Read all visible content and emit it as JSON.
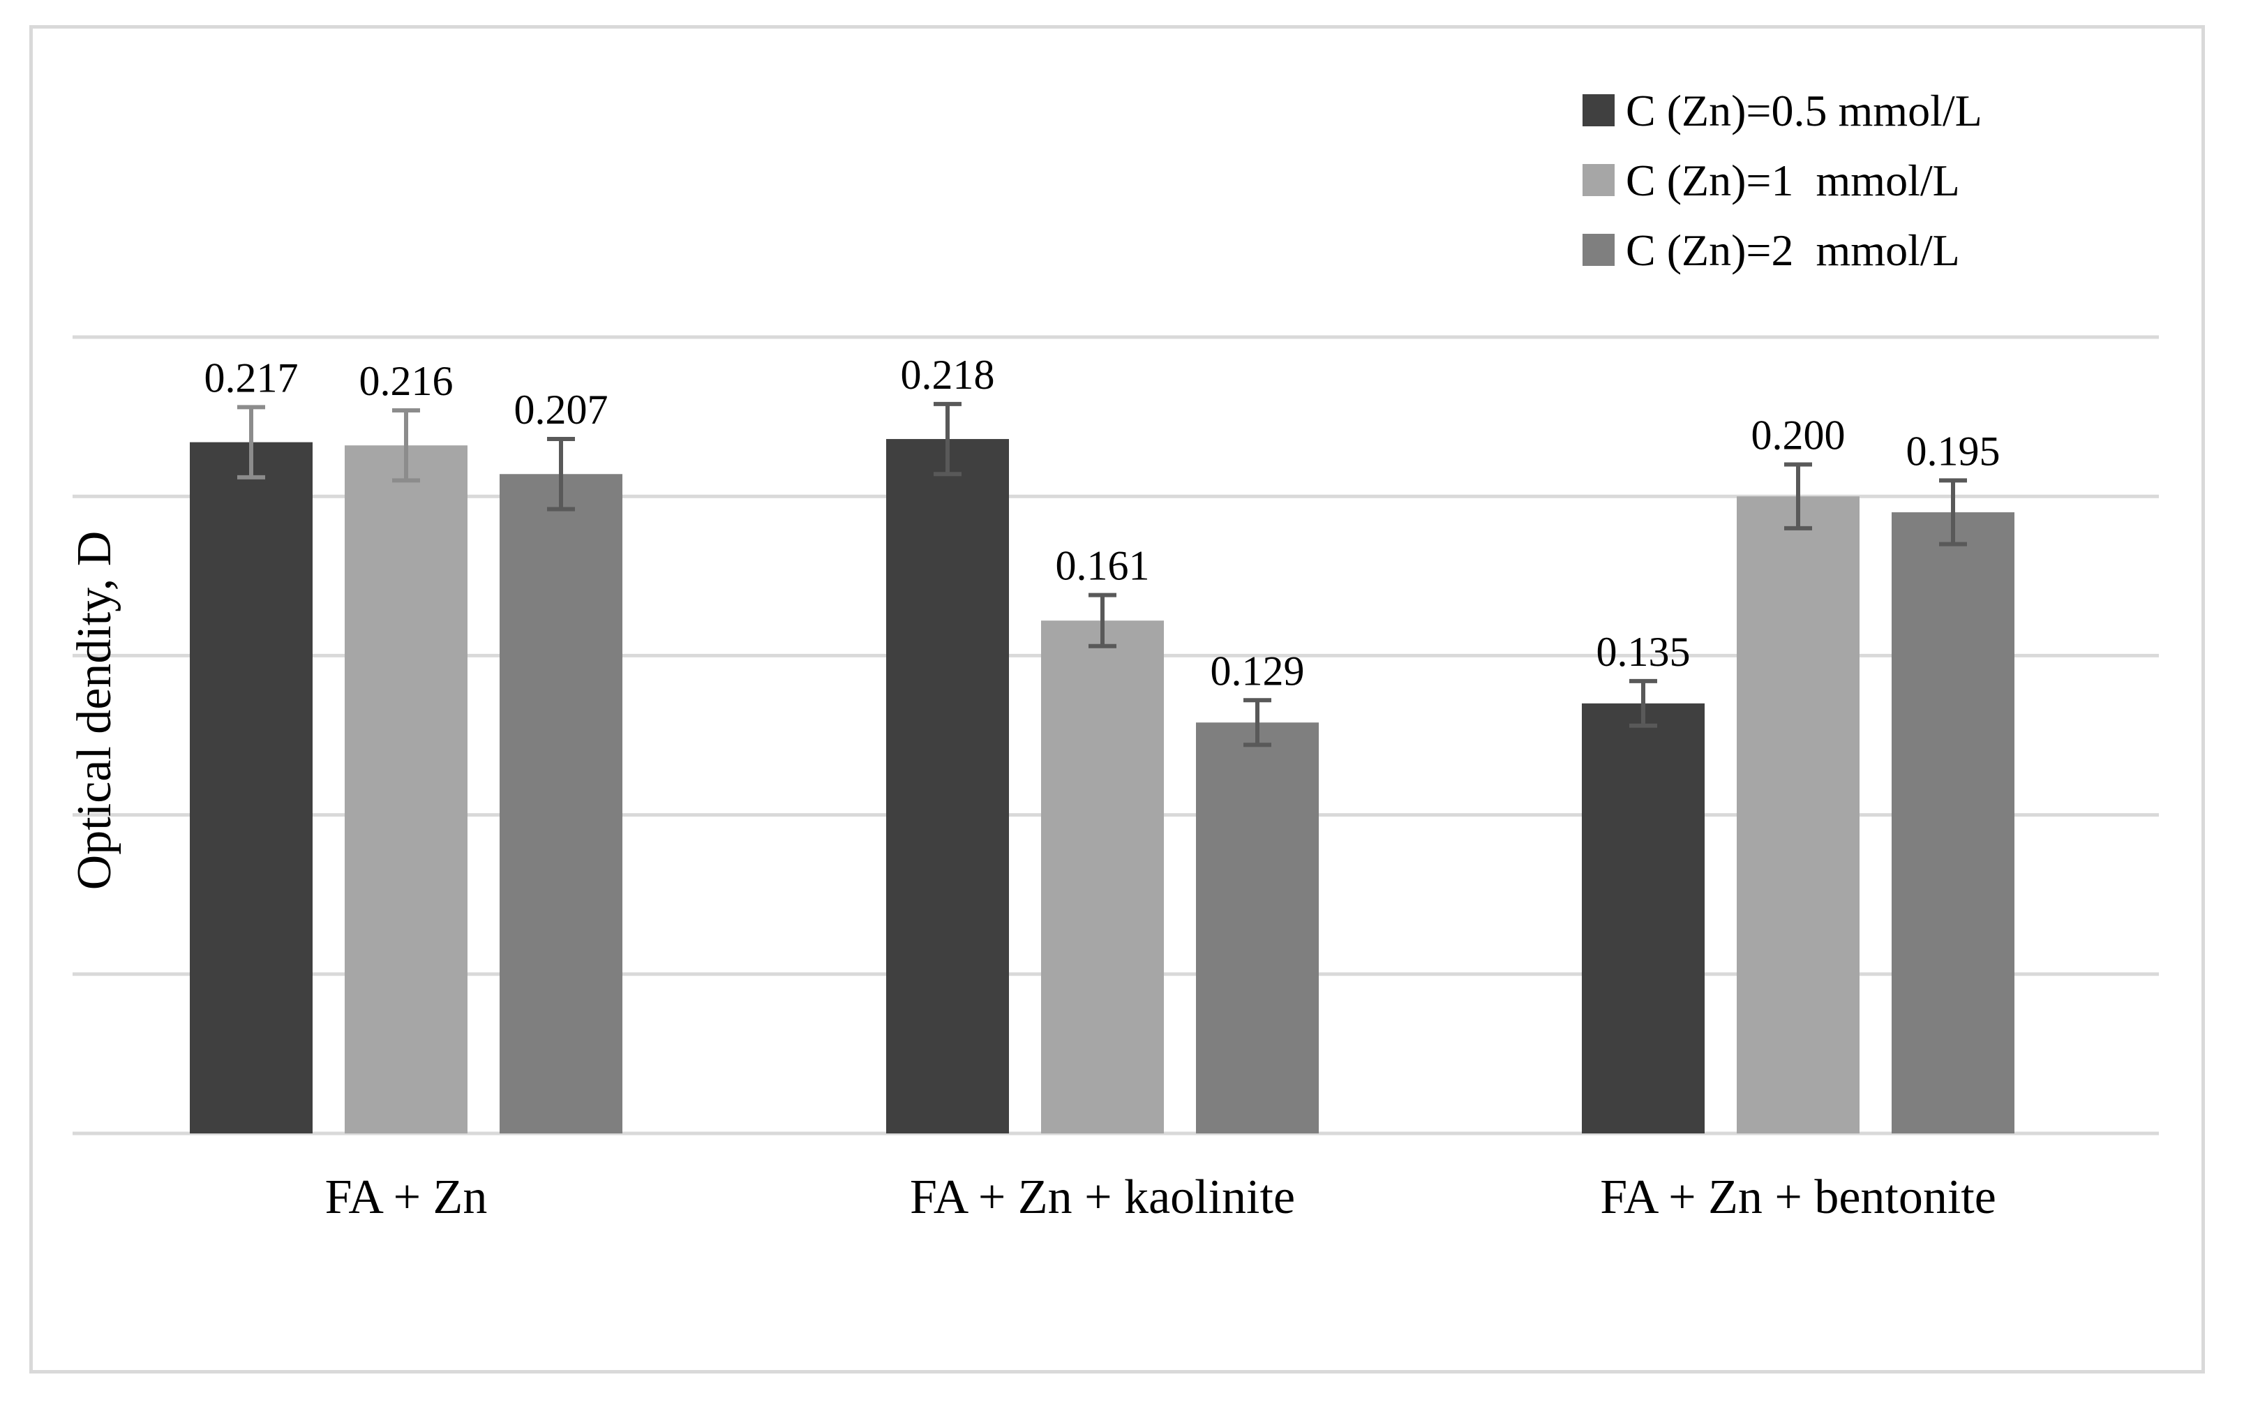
{
  "chart_data": {
    "type": "bar",
    "title": "",
    "xlabel": "",
    "ylabel": "Optical dendity, D",
    "ylim": [
      0,
      0.25
    ],
    "grid": true,
    "legend_position": "top-right",
    "categories": [
      "FA + Zn",
      "FA + Zn + kaolinite",
      "FA + Zn + bentonite"
    ],
    "series": [
      {
        "name": "C (Zn)=0.5 mmol/L",
        "color": "#404040",
        "values": [
          0.217,
          0.218,
          0.135
        ],
        "errors": [
          0.011,
          0.011,
          0.007
        ],
        "labels": [
          "0.217",
          "0.218",
          "0.135"
        ]
      },
      {
        "name": "C (Zn)=1  mmol/L",
        "color": "#a6a6a6",
        "values": [
          0.216,
          0.161,
          0.2
        ],
        "errors": [
          0.011,
          0.008,
          0.01
        ],
        "labels": [
          "0.216",
          "0.161",
          "0.200"
        ]
      },
      {
        "name": "C (Zn)=2  mmol/L",
        "color": "#7f7f7f",
        "values": [
          0.207,
          0.129,
          0.195
        ],
        "errors": [
          0.011,
          0.007,
          0.01
        ],
        "labels": [
          "0.207",
          "0.129",
          "0.195"
        ]
      }
    ],
    "gridline_color": "#d9d9d9",
    "errorbar_colors": [
      "#8c8c8c",
      "#595959"
    ]
  }
}
